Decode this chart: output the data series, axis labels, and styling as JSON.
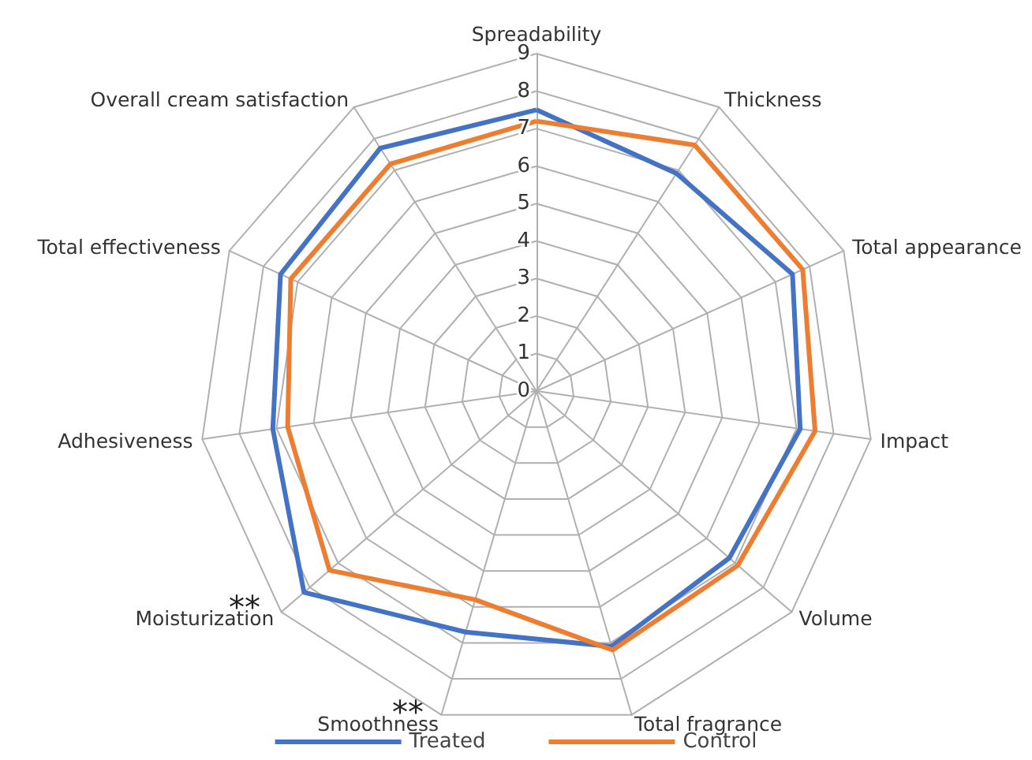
{
  "chart_data": {
    "type": "radar",
    "categories": [
      "Spreadability",
      "Thickness",
      "Total appearance",
      "Impact",
      "Volume",
      "Total fragrance",
      "Smoothness",
      "Moisturization",
      "Adhesiveness",
      "Total effectiveness",
      "Overall cream satisfaction"
    ],
    "series": [
      {
        "name": "Treated",
        "color": "#4472c4",
        "values": [
          7.5,
          6.9,
          7.5,
          7.1,
          6.8,
          7.1,
          6.7,
          8.2,
          7.1,
          7.5,
          7.7
        ]
      },
      {
        "name": "Control",
        "color": "#ed7d31",
        "values": [
          7.2,
          7.8,
          7.8,
          7.5,
          7.1,
          7.2,
          5.8,
          7.3,
          6.7,
          7.2,
          7.2
        ]
      }
    ],
    "ylim": [
      0,
      9
    ],
    "yticks": [
      0,
      1,
      2,
      3,
      4,
      5,
      6,
      7,
      8,
      9
    ],
    "annotations": [
      {
        "text": "**",
        "x": "Moisturization"
      },
      {
        "text": "**",
        "x": "Smoothness"
      }
    ],
    "marker": "none",
    "legend": "bottom",
    "grid": true
  }
}
